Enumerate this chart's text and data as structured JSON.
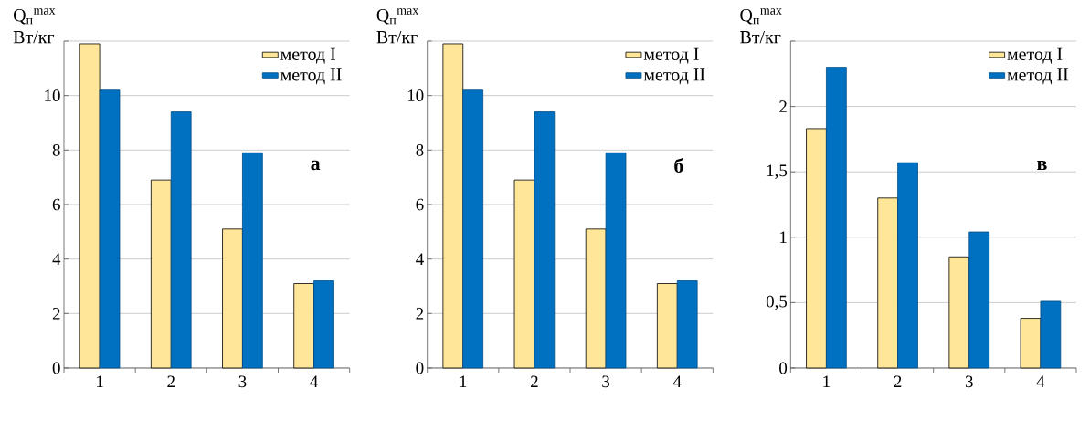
{
  "chart_data": [
    {
      "type": "bar",
      "ylabel": "Q$_{п}$$^{max}$ Вт/кг",
      "categories": [
        "1",
        "2",
        "3",
        "4"
      ],
      "series": [
        {
          "name": "метод I",
          "color": "#ffe699",
          "values": [
            11.9,
            6.9,
            5.1,
            3.1
          ]
        },
        {
          "name": "метод II",
          "color": "#0070c0",
          "values": [
            10.2,
            9.4,
            7.9,
            3.2
          ]
        }
      ],
      "ylim": [
        0,
        12
      ],
      "yticks": [
        0,
        2,
        4,
        6,
        8,
        10,
        {
          "value": 12,
          "label": null
        }
      ],
      "grid": "y",
      "legend": "top right",
      "annotations": [
        "а"
      ]
    },
    {
      "type": "bar",
      "ylabel": "Q$_{п}$$^{max}$ Вт/кг",
      "categories": [
        "1",
        "2",
        "3",
        "4"
      ],
      "series": [
        {
          "name": "метод I",
          "color": "#ffe699",
          "values": [
            11.9,
            6.9,
            5.1,
            3.1
          ]
        },
        {
          "name": "метод II",
          "color": "#0070c0",
          "values": [
            10.2,
            9.4,
            7.9,
            3.2
          ]
        }
      ],
      "ylim": [
        0,
        12
      ],
      "yticks": [
        0,
        2,
        4,
        6,
        8,
        10,
        {
          "value": 12,
          "label": null
        }
      ],
      "grid": "y",
      "legend": "top right",
      "annotations": [
        "б"
      ]
    },
    {
      "type": "bar",
      "ylabel": "Q$_{п}$$^{max}$ Вт/кг",
      "categories": [
        "1",
        "2",
        "3",
        "4"
      ],
      "series": [
        {
          "name": "метод I",
          "color": "#ffe699",
          "values": [
            1.83,
            1.3,
            0.85,
            0.38
          ]
        },
        {
          "name": "метод II",
          "color": "#0070c0",
          "values": [
            2.3,
            1.57,
            1.04,
            0.51
          ]
        }
      ],
      "ylim": [
        0,
        2.5
      ],
      "yticks": [
        0,
        {
          "value": 0.5,
          "label": "0,5"
        },
        1,
        {
          "value": 1.5,
          "label": "1,5"
        },
        2,
        {
          "value": 2.5,
          "label": null
        }
      ],
      "grid": "y",
      "legend": "top right",
      "annotations": [
        "в"
      ]
    }
  ]
}
